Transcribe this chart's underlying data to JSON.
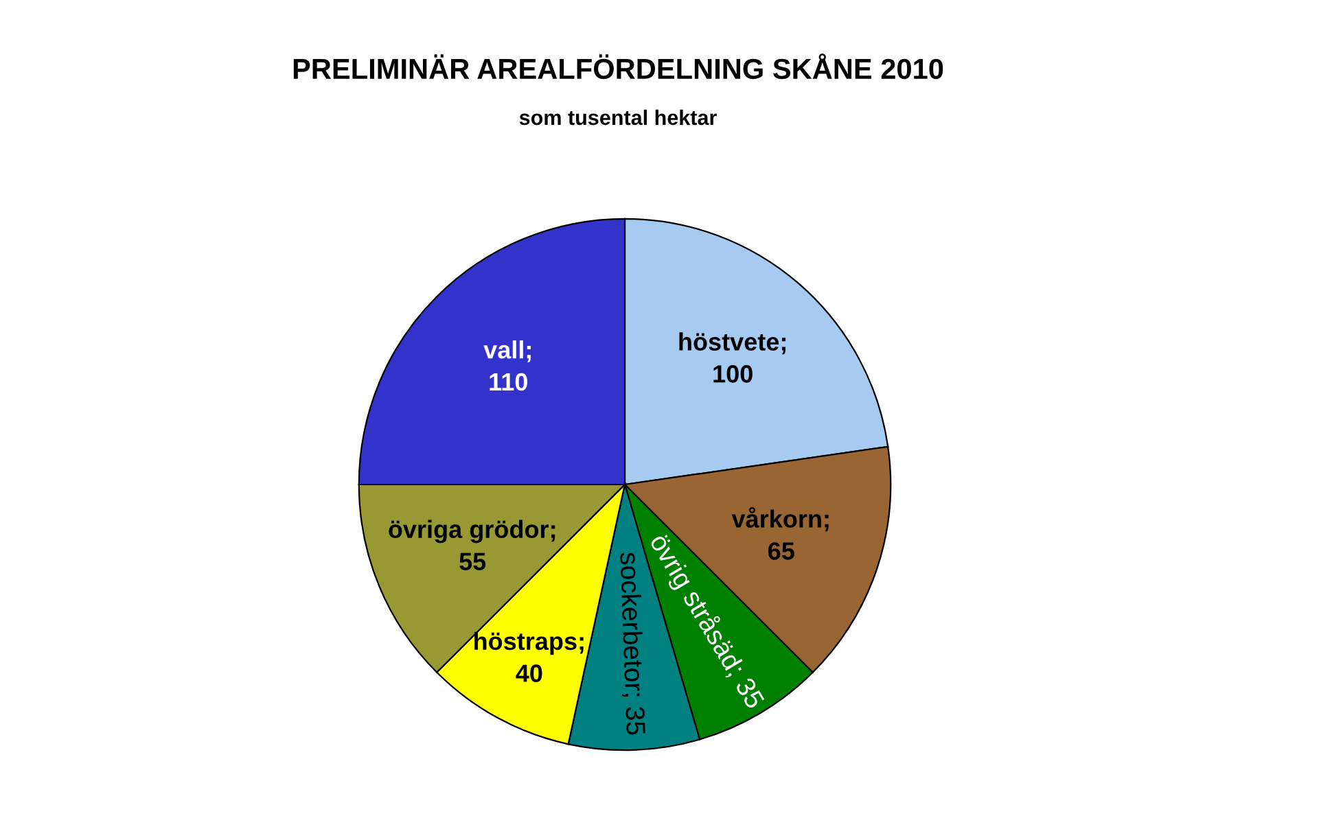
{
  "chart_data": {
    "type": "pie",
    "title": "PRELIMINÄR AREALFÖRDELNING SKÅNE 2010",
    "subtitle": "som tusental hektar",
    "categories": [
      "höstvete",
      "vårkorn",
      "övrig stråsäd",
      "sockerbetor",
      "höstraps",
      "övriga grödor",
      "vall"
    ],
    "values": [
      100,
      65,
      35,
      35,
      40,
      55,
      110
    ],
    "colors": [
      "#a6caf0",
      "#996633",
      "#008000",
      "#008080",
      "#ffff00",
      "#999933",
      "#3333cc"
    ],
    "value_labels": [
      ";\n100",
      ";\n65",
      "; 35",
      "; 35",
      ";\n40",
      ";\n55",
      ";\n110"
    ],
    "legend": false
  }
}
